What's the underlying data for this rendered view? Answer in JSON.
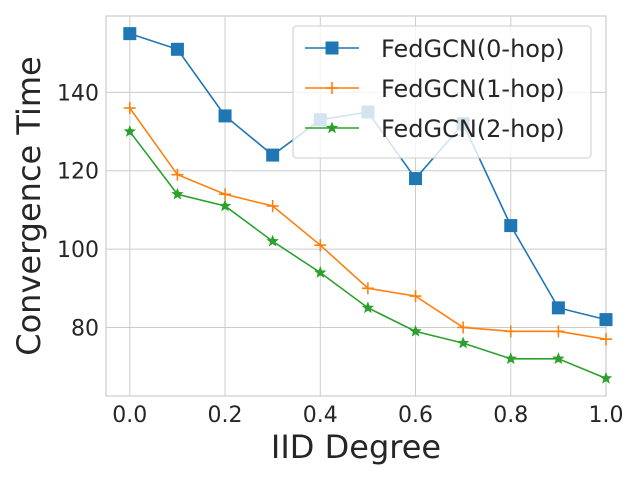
{
  "chart_data": {
    "type": "line",
    "xlabel": "IID Degree",
    "ylabel": "Convergence Time",
    "xlim": [
      -0.05,
      1.0
    ],
    "ylim": [
      62.5,
      159.5
    ],
    "xticks": [
      0.0,
      0.2,
      0.4,
      0.6,
      0.8,
      1.0
    ],
    "xtick_labels": [
      "0.0",
      "0.2",
      "0.4",
      "0.6",
      "0.8",
      "1.0"
    ],
    "yticks": [
      80,
      100,
      120,
      140
    ],
    "ytick_labels": [
      "80",
      "100",
      "120",
      "140"
    ],
    "grid": true,
    "legend_position": "top-right",
    "x": [
      0.0,
      0.1,
      0.2,
      0.3,
      0.4,
      0.5,
      0.6,
      0.7,
      0.8,
      0.9,
      1.0
    ],
    "series": [
      {
        "name": "FedGCN(0-hop)",
        "color": "#1f77b4",
        "marker": "square",
        "values": [
          155,
          151,
          134,
          124,
          133,
          135,
          118,
          132,
          106,
          85,
          82
        ]
      },
      {
        "name": "FedGCN(1-hop)",
        "color": "#ff7f0e",
        "marker": "plus",
        "values": [
          136,
          119,
          114,
          111,
          101,
          90,
          88,
          80,
          79,
          79,
          77
        ]
      },
      {
        "name": "FedGCN(2-hop)",
        "color": "#2ca02c",
        "marker": "star",
        "values": [
          130,
          114,
          111,
          102,
          94,
          85,
          79,
          76,
          72,
          72,
          67
        ]
      }
    ]
  }
}
